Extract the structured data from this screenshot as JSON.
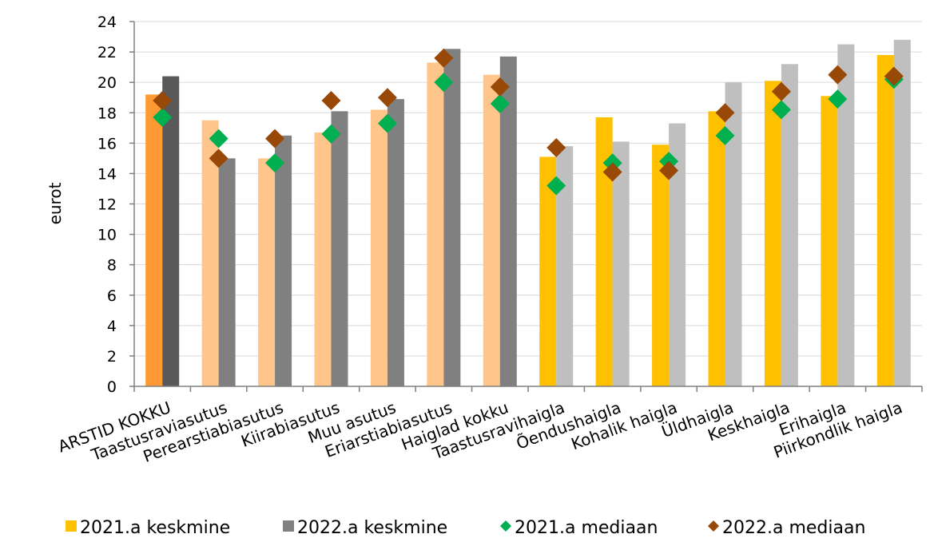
{
  "chart_data": {
    "type": "bar",
    "ylabel": "eurot",
    "ylim": [
      0,
      24
    ],
    "yticks": [
      0,
      2,
      4,
      6,
      8,
      10,
      12,
      14,
      16,
      18,
      20,
      22,
      24
    ],
    "grid": true,
    "legend_position": "bottom",
    "categories": [
      "ARSTID KOKKU",
      "Taastusraviasutus",
      "Perearstiabiasutus",
      "Kiirabiasutus",
      "Muu asutus",
      "Eriarstiabiasutus",
      "Haiglad kokku",
      "Taastusravihaigla",
      "Õendushaigla",
      "Kohalik haigla",
      "Üldhaigla",
      "Keskhaigla",
      "Erihaigla",
      "Piirkondlik haigla"
    ],
    "series": [
      {
        "name": "2021.a keskmine",
        "kind": "bar",
        "color": "#FFC000",
        "point_colors": [
          "#FF9933",
          "#FFC58A",
          "#FFC58A",
          "#FFC58A",
          "#FFC58A",
          "#FFC58A",
          "#FFC58A",
          "#FFC000",
          "#FFC000",
          "#FFC000",
          "#FFC000",
          "#FFC000",
          "#FFC000",
          "#FFC000"
        ],
        "values": [
          19.2,
          17.5,
          15.0,
          16.7,
          18.2,
          21.3,
          20.5,
          15.1,
          17.7,
          15.9,
          18.1,
          20.1,
          19.1,
          21.8
        ]
      },
      {
        "name": "2022.a keskmine",
        "kind": "bar",
        "color": "#808080",
        "point_colors": [
          "#595959",
          "#808080",
          "#808080",
          "#808080",
          "#808080",
          "#808080",
          "#808080",
          "#BFBFBF",
          "#BFBFBF",
          "#BFBFBF",
          "#BFBFBF",
          "#BFBFBF",
          "#BFBFBF",
          "#BFBFBF"
        ],
        "values": [
          20.4,
          15.0,
          16.5,
          18.1,
          18.9,
          22.2,
          21.7,
          15.8,
          16.1,
          17.3,
          20.0,
          21.2,
          22.5,
          22.8
        ]
      },
      {
        "name": "2021.a mediaan",
        "kind": "marker",
        "color": "#00B050",
        "values": [
          17.7,
          16.3,
          14.7,
          16.6,
          17.3,
          20.0,
          18.6,
          13.2,
          14.7,
          14.8,
          16.5,
          18.2,
          18.9,
          20.2
        ]
      },
      {
        "name": "2022.a mediaan",
        "kind": "marker",
        "color": "#984807",
        "values": [
          18.8,
          15.0,
          16.3,
          18.8,
          19.0,
          21.6,
          19.7,
          15.7,
          14.1,
          14.2,
          18.0,
          19.4,
          20.5,
          20.4
        ]
      }
    ]
  }
}
